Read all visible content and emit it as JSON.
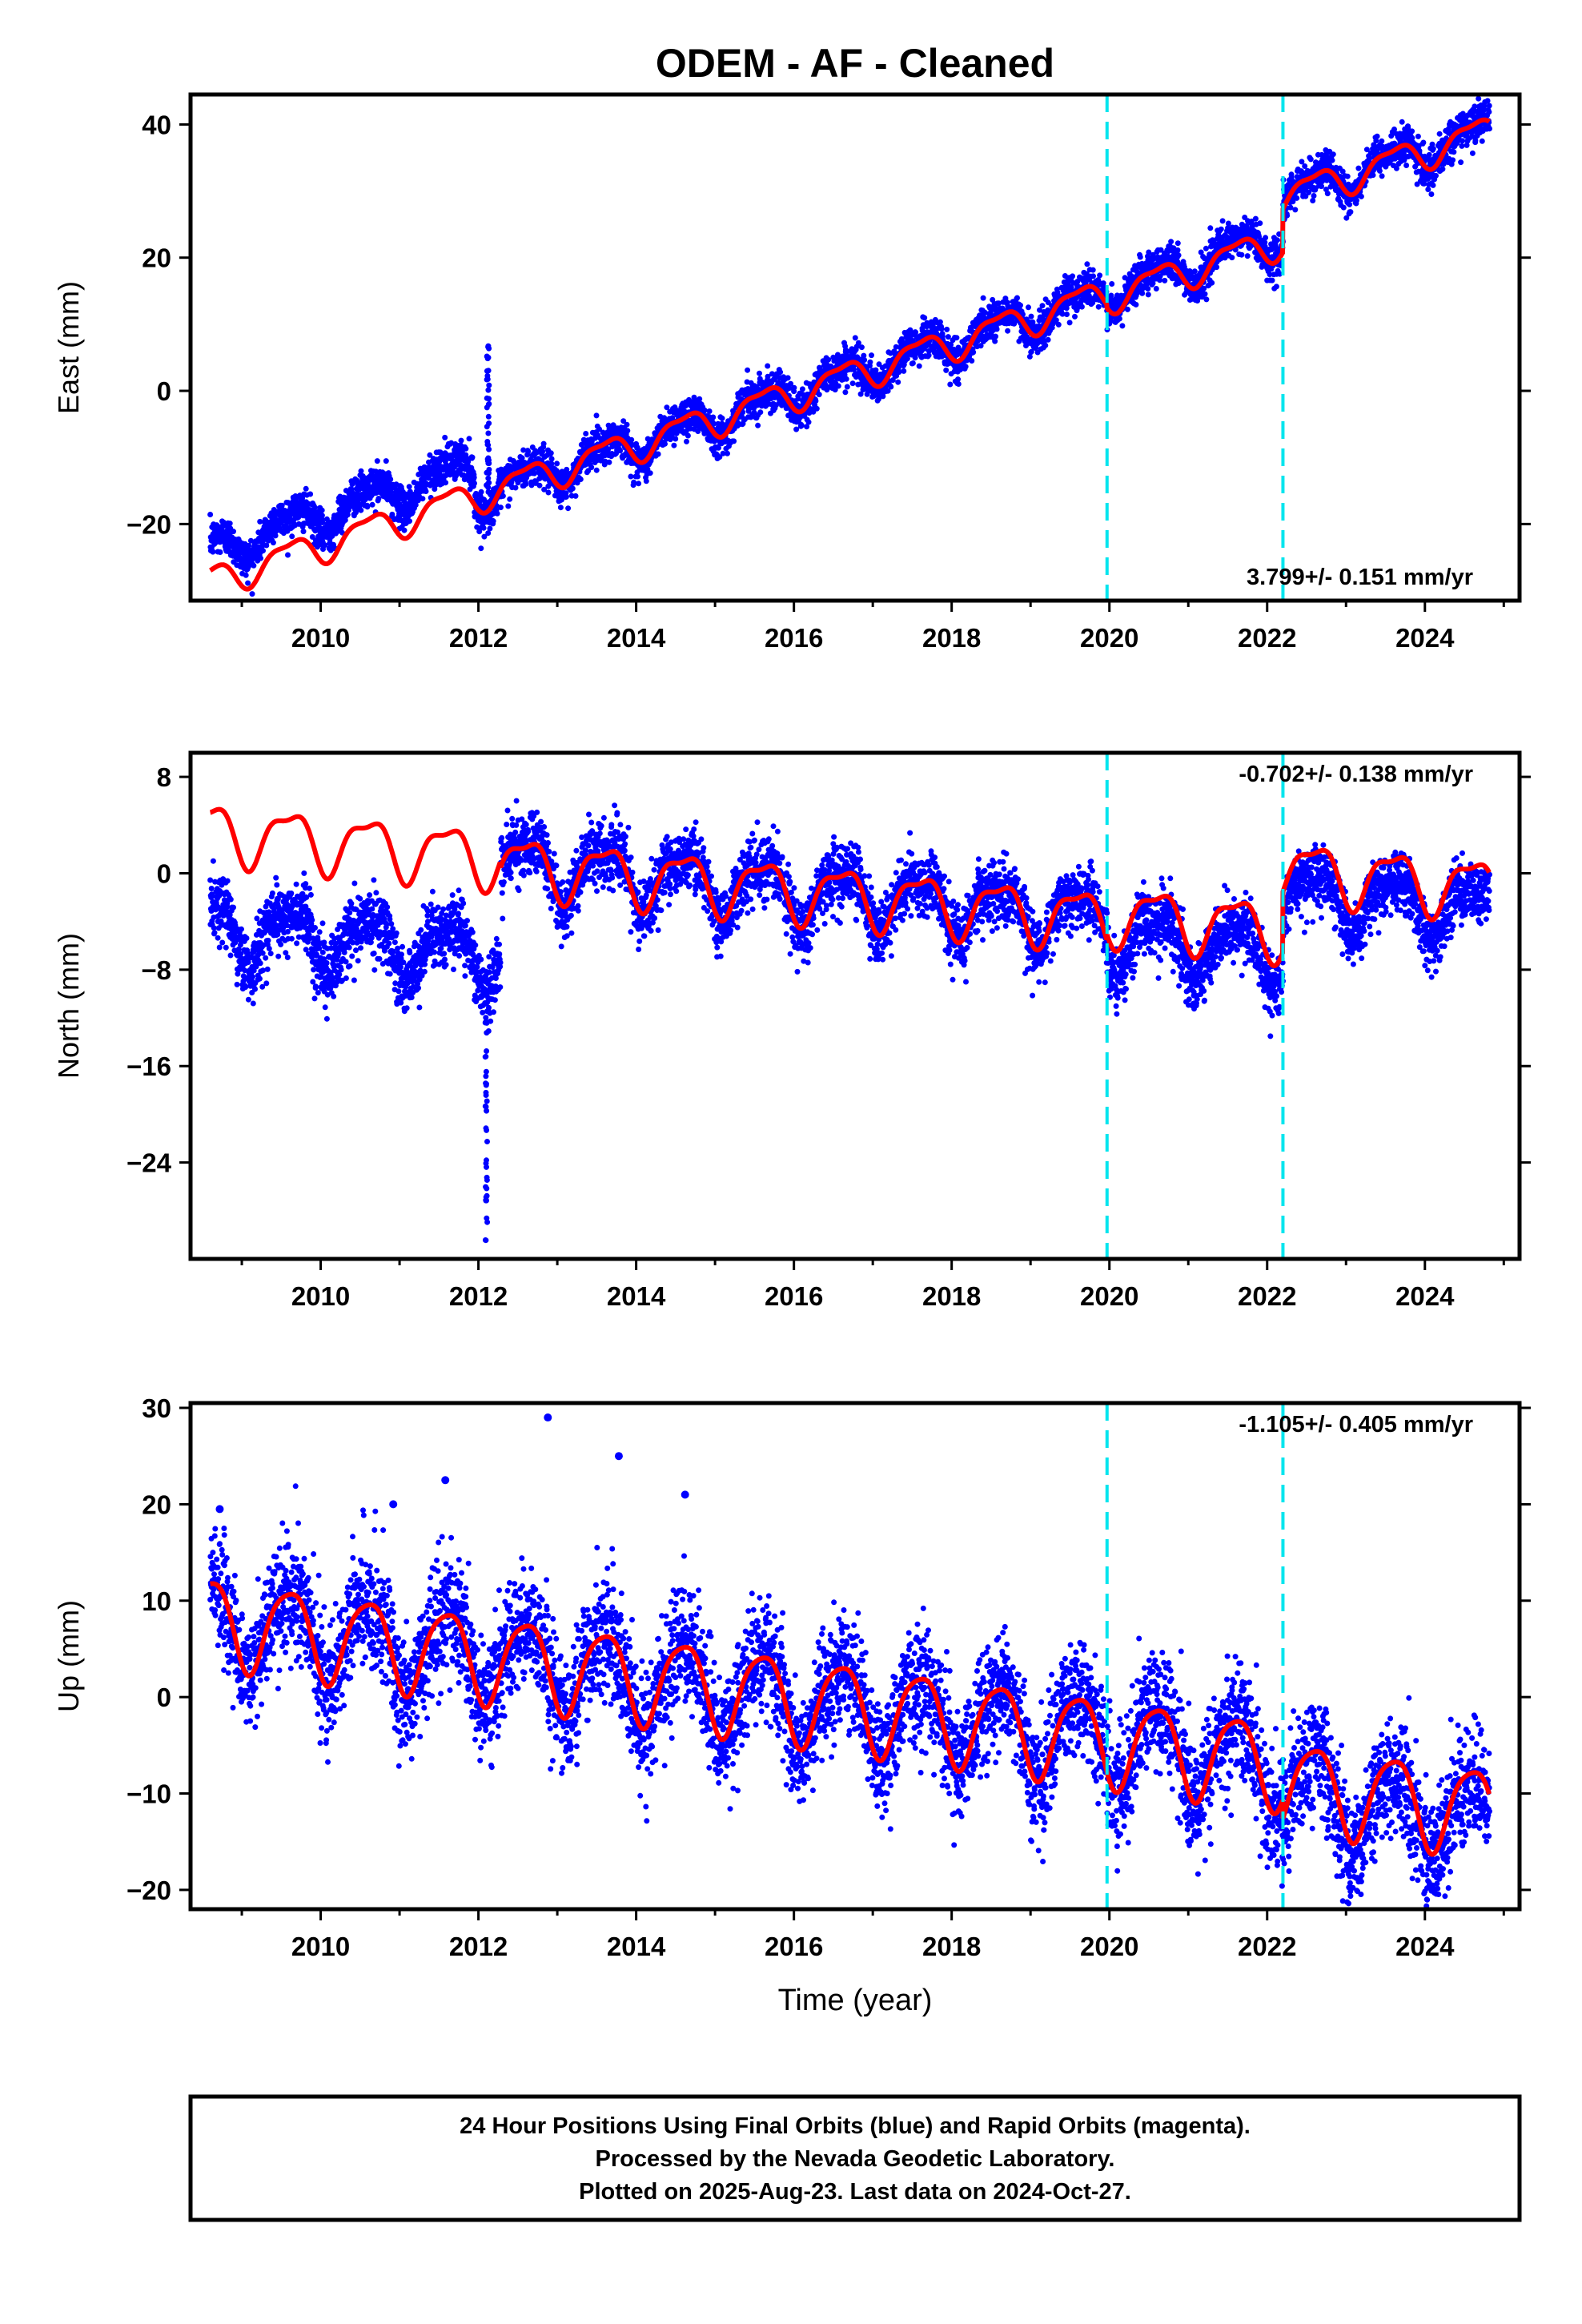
{
  "chart_data": {
    "type": "scatter",
    "title": "ODEM  - AF - Cleaned",
    "xlabel": "Time (year)",
    "xlim": [
      2008.35,
      2025.2
    ],
    "xticks": [
      2010,
      2012,
      2014,
      2016,
      2018,
      2020,
      2022,
      2024
    ],
    "equipment_change_years": [
      2019.97,
      2022.2
    ],
    "colors": {
      "points": "#0000ff",
      "model": "#ff0000",
      "events": "#00e5ee"
    },
    "panels": [
      {
        "id": "east",
        "ylabel": "East (mm)",
        "ylim": [
          -31.5,
          44.5
        ],
        "yticks": [
          -20,
          0,
          20,
          40
        ],
        "ytick_labels": [
          "−20",
          "0",
          "20",
          "40"
        ],
        "rate": "3.799+/- 0.151 mm/yr",
        "rate_position": "bottom-right",
        "data_start": 2008.6,
        "data_end": 2024.82,
        "trend": {
          "t0": 2008.6,
          "y0": -28.5,
          "slope": 3.8
        },
        "seasonal_amplitude": 2.3,
        "noise": 1.4,
        "offsets": [
          {
            "start": 2008.6,
            "end": 2011.95,
            "shift": 4.5
          },
          {
            "start": 2022.2,
            "end": 2025.0,
            "shift": 6.0
          }
        ],
        "model_offsets": [
          {
            "start": 2022.2,
            "end": 2025.0,
            "shift": 6.0
          },
          {
            "start": 2019.97,
            "end": 2022.2,
            "shift": -0.5
          }
        ],
        "spike": {
          "year": 2012.12,
          "min": -16,
          "max": 7
        }
      },
      {
        "id": "north",
        "ylabel": "North (mm)",
        "ylim": [
          -32,
          10
        ],
        "yticks": [
          -24,
          -16,
          -8,
          0,
          8
        ],
        "ytick_labels": [
          "−24",
          "−16",
          "−8",
          "0",
          "8"
        ],
        "rate": "-0.702+/- 0.138 mm/yr",
        "rate_position": "top-right",
        "data_start": 2008.6,
        "data_end": 2024.82,
        "trend": {
          "t0": 2008.6,
          "y0": 3.0,
          "slope": -0.6
        },
        "seasonal_amplitude": 2.3,
        "noise": 1.3,
        "offsets": [
          {
            "start": 2008.6,
            "end": 2012.28,
            "shift": -7.5
          },
          {
            "start": 2019.97,
            "end": 2022.2,
            "shift": -1.5
          },
          {
            "start": 2022.2,
            "end": 2025.0,
            "shift": 3.5
          }
        ],
        "model_offsets": [
          {
            "start": 2008.6,
            "end": 2012.28,
            "shift": 0.5
          },
          {
            "start": 2019.97,
            "end": 2022.2,
            "shift": 0.5
          },
          {
            "start": 2022.2,
            "end": 2025.0,
            "shift": 5.5
          }
        ],
        "spike": {
          "year": 2012.1,
          "min": -31.5,
          "max": -8
        }
      },
      {
        "id": "up",
        "ylabel": "Up (mm)",
        "ylim": [
          -22,
          30.5
        ],
        "yticks": [
          -20,
          -10,
          0,
          10,
          20,
          30
        ],
        "ytick_labels": [
          "−20",
          "−10",
          "0",
          "10",
          "20",
          "30"
        ],
        "rate": "-1.105+/- 0.405 mm/yr",
        "rate_position": "top-right",
        "data_start": 2008.6,
        "data_end": 2024.82,
        "trend": {
          "t0": 2008.6,
          "y0": 8.0,
          "slope": -1.1
        },
        "seasonal_amplitude": 4.5,
        "noise": 3.0,
        "offsets": [
          {
            "start": 2022.2,
            "end": 2025.0,
            "shift": -3.0
          }
        ],
        "model_offsets": [
          {
            "start": 2022.2,
            "end": 2025.0,
            "shift": -2.0
          }
        ],
        "outliers": [
          {
            "year": 2012.88,
            "value": 29
          },
          {
            "year": 2013.78,
            "value": 25
          },
          {
            "year": 2011.58,
            "value": 22.5
          },
          {
            "year": 2014.62,
            "value": 21
          },
          {
            "year": 2008.72,
            "value": 19.5
          },
          {
            "year": 2010.92,
            "value": 20
          }
        ]
      }
    ]
  },
  "footer": {
    "lines": [
      "24 Hour Positions Using Final Orbits (blue) and Rapid Orbits (magenta).",
      "Processed by the Nevada Geodetic Laboratory.",
      "Plotted on 2025-Aug-23. Last data on 2024-Oct-27."
    ]
  }
}
